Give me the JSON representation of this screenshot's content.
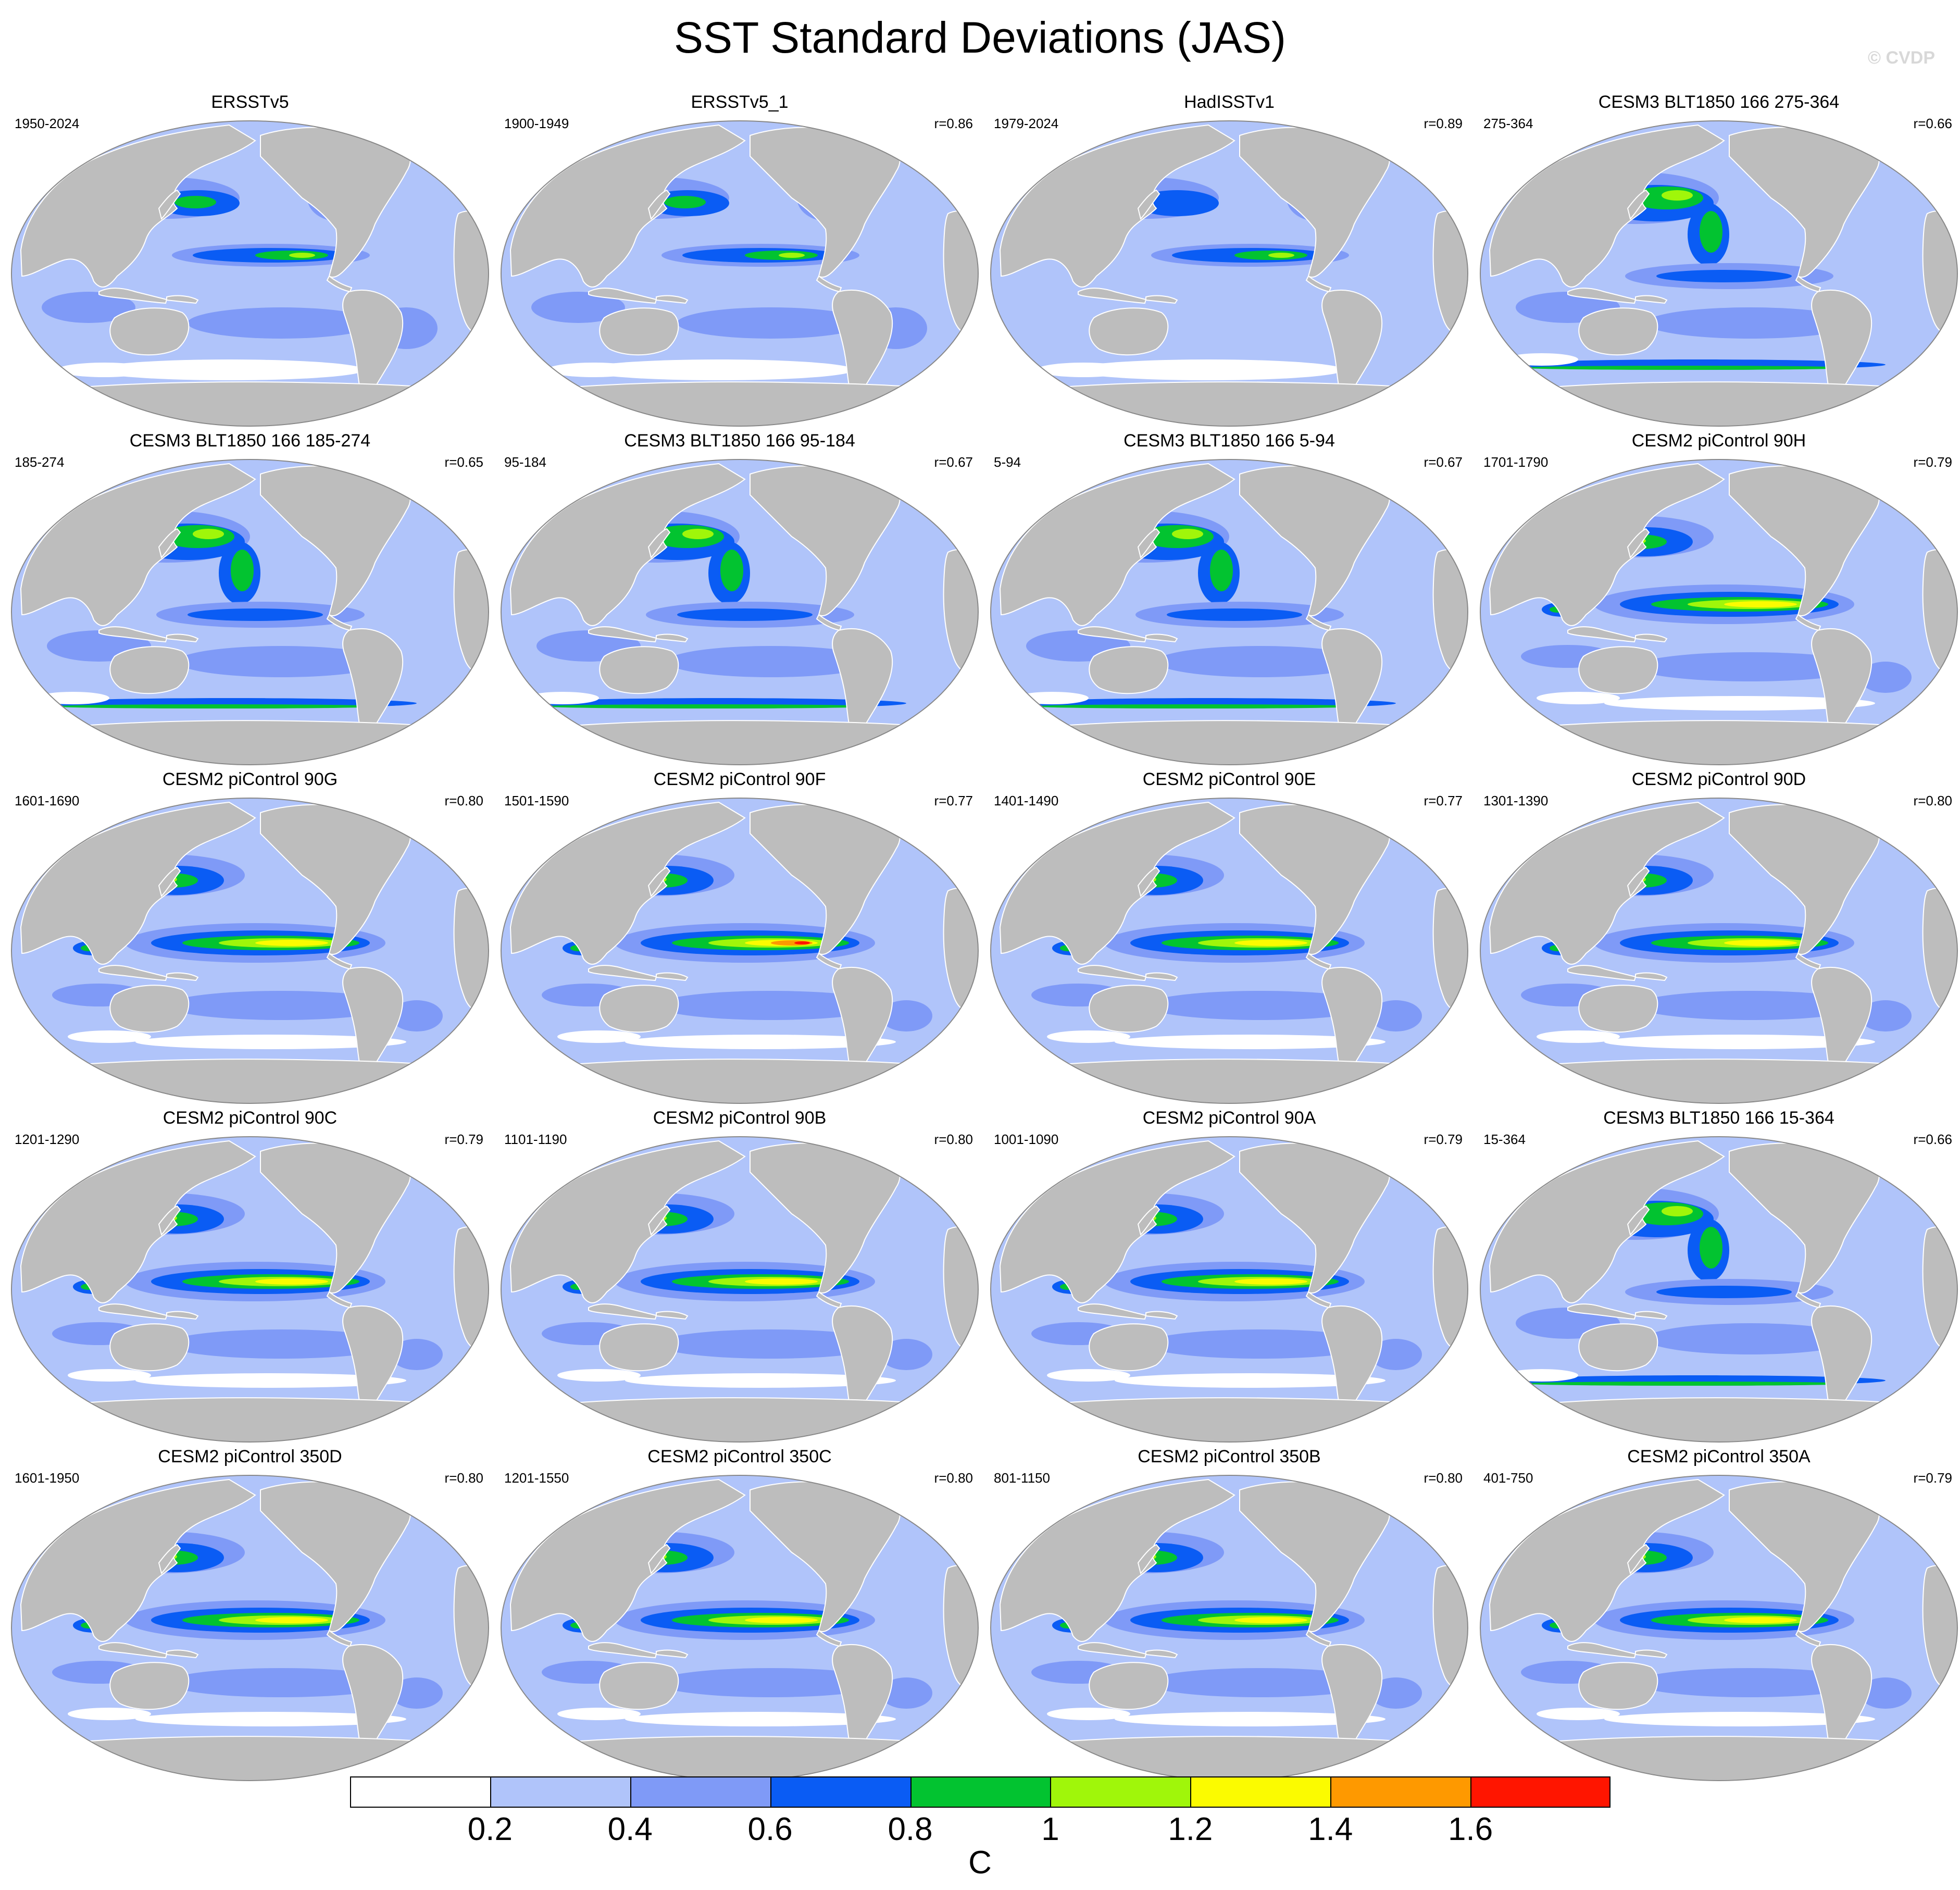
{
  "title": "SST Standard Deviations (JAS)",
  "credit": "© CVDP",
  "panels": [
    {
      "title": "ERSSTv5",
      "period": "1950-2024",
      "r": "",
      "style": "obs"
    },
    {
      "title": "ERSSTv5_1",
      "period": "1900-1949",
      "r": "r=0.86",
      "style": "obs"
    },
    {
      "title": "HadISSTv1",
      "period": "1979-2024",
      "r": "r=0.89",
      "style": "obs-weak"
    },
    {
      "title": "CESM3 BLT1850 166 275-364",
      "period": "275-364",
      "r": "r=0.66",
      "style": "cesm3"
    },
    {
      "title": "CESM3 BLT1850 166 185-274",
      "period": "185-274",
      "r": "r=0.65",
      "style": "cesm3"
    },
    {
      "title": "CESM3 BLT1850 166 95-184",
      "period": "95-184",
      "r": "r=0.67",
      "style": "cesm3"
    },
    {
      "title": "CESM3 BLT1850 166 5-94",
      "period": "5-94",
      "r": "r=0.67",
      "style": "cesm3"
    },
    {
      "title": "CESM2 piControl 90H",
      "period": "1701-1790",
      "r": "r=0.79",
      "style": "cesm2"
    },
    {
      "title": "CESM2 piControl 90G",
      "period": "1601-1690",
      "r": "r=0.80",
      "style": "cesm2"
    },
    {
      "title": "CESM2 piControl 90F",
      "period": "1501-1590",
      "r": "r=0.77",
      "style": "cesm2-strong"
    },
    {
      "title": "CESM2 piControl 90E",
      "period": "1401-1490",
      "r": "r=0.77",
      "style": "cesm2"
    },
    {
      "title": "CESM2 piControl 90D",
      "period": "1301-1390",
      "r": "r=0.80",
      "style": "cesm2"
    },
    {
      "title": "CESM2 piControl 90C",
      "period": "1201-1290",
      "r": "r=0.79",
      "style": "cesm2"
    },
    {
      "title": "CESM2 piControl 90B",
      "period": "1101-1190",
      "r": "r=0.80",
      "style": "cesm2"
    },
    {
      "title": "CESM2 piControl 90A",
      "period": "1001-1090",
      "r": "r=0.79",
      "style": "cesm2"
    },
    {
      "title": "CESM3 BLT1850 166 15-364",
      "period": "15-364",
      "r": "r=0.66",
      "style": "cesm3"
    },
    {
      "title": "CESM2 piControl 350D",
      "period": "1601-1950",
      "r": "r=0.80",
      "style": "cesm2"
    },
    {
      "title": "CESM2 piControl 350C",
      "period": "1201-1550",
      "r": "r=0.80",
      "style": "cesm2"
    },
    {
      "title": "CESM2 piControl 350B",
      "period": "801-1150",
      "r": "r=0.80",
      "style": "cesm2"
    },
    {
      "title": "CESM2 piControl 350A",
      "period": "401-750",
      "r": "r=0.79",
      "style": "cesm2"
    }
  ],
  "colorbar": {
    "levels": [
      0.2,
      0.4,
      0.6,
      0.8,
      1,
      1.2,
      1.4,
      1.6
    ],
    "tick_labels": [
      "0.2",
      "0.4",
      "0.6",
      "0.8",
      "1",
      "1.2",
      "1.4",
      "1.6"
    ],
    "colors": [
      "#ffffff",
      "#b0c4fa",
      "#7f9af7",
      "#0a5cf4",
      "#02c330",
      "#a0f60a",
      "#fbfb00",
      "#fe9900",
      "#ff1500"
    ],
    "unit": "C"
  },
  "map_colors": {
    "land": "#bdbdbd",
    "coast": "#ffffff",
    "outline": "#888888"
  }
}
